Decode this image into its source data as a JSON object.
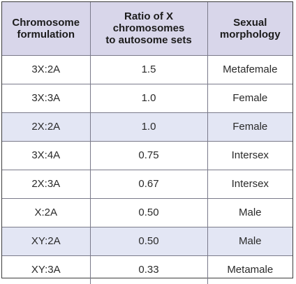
{
  "headers": [
    [
      "Chromosome",
      "formulation"
    ],
    [
      "Ratio of X",
      "chromosomes",
      "to autosome sets"
    ],
    [
      "Sexual",
      "morphology"
    ]
  ],
  "rows": [
    {
      "formulation": "3X:2A",
      "ratio": "1.5",
      "morphology": "Metafemale",
      "shaded": false
    },
    {
      "formulation": "3X:3A",
      "ratio": "1.0",
      "morphology": "Female",
      "shaded": false
    },
    {
      "formulation": "2X:2A",
      "ratio": "1.0",
      "morphology": "Female",
      "shaded": true
    },
    {
      "formulation": "3X:4A",
      "ratio": "0.75",
      "morphology": "Intersex",
      "shaded": false
    },
    {
      "formulation": "2X:3A",
      "ratio": "0.67",
      "morphology": "Intersex",
      "shaded": false
    },
    {
      "formulation": "X:2A",
      "ratio": "0.50",
      "morphology": "Male",
      "shaded": false
    },
    {
      "formulation": "XY:2A",
      "ratio": "0.50",
      "morphology": "Male",
      "shaded": true
    },
    {
      "formulation": "XY:3A",
      "ratio": "0.33",
      "morphology": "Metamale",
      "shaded": false
    }
  ],
  "colors": {
    "header_background": "#d8d6ea",
    "row_highlight": "#e3e6f4",
    "border": "#7a7a8a"
  }
}
